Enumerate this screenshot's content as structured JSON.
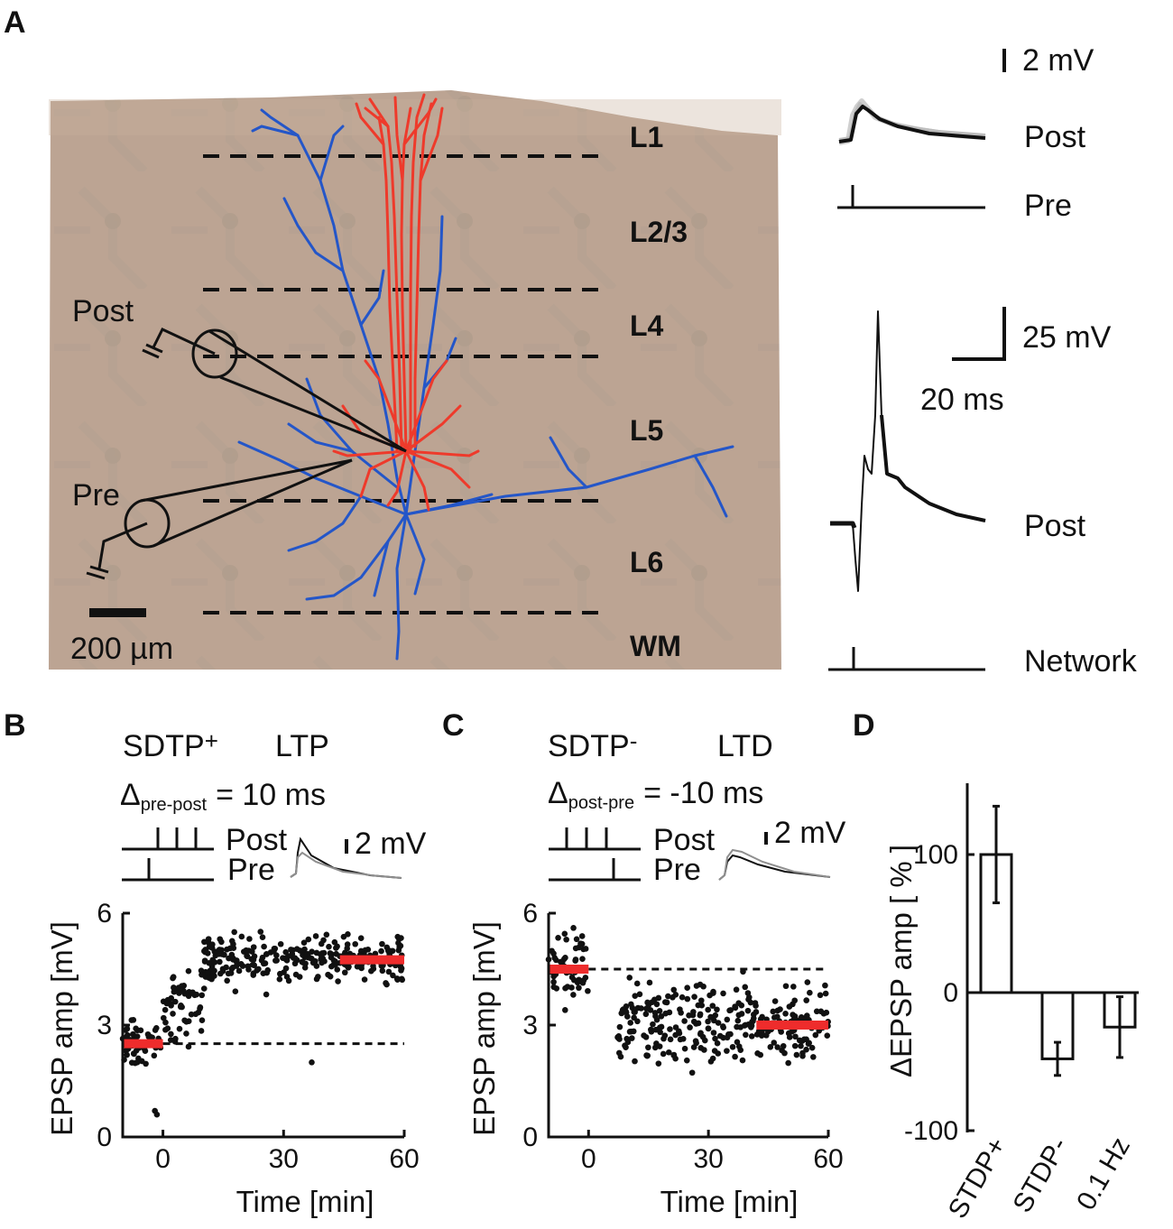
{
  "panels": {
    "a": "A",
    "b": "B",
    "c": "C",
    "d": "D"
  },
  "panel_a": {
    "layers": [
      "L1",
      "L2/3",
      "L4",
      "L5",
      "L6",
      "WM"
    ],
    "electrodes": {
      "post": "Post",
      "pre": "Pre"
    },
    "scale_bar": "200 µm",
    "traces": {
      "top_scale": "2 mV",
      "top_post": "Post",
      "top_pre": "Pre",
      "bottom_scale_v": "25 mV",
      "bottom_scale_t": "20 ms",
      "bottom_post": "Post",
      "bottom_network": "Network"
    },
    "colors": {
      "pyramidal": "#ee3a2b",
      "interneuron": "#2456c8",
      "slice": "#bca493"
    }
  },
  "panel_b": {
    "protocol": "SDTP",
    "protocol_sup": "+",
    "effect": "LTP",
    "delta_symbol": "Δ",
    "delta_sub": "pre-post",
    "delta_value": "= 10 ms",
    "post_label": "Post",
    "pre_label": "Pre",
    "scale": "2 mV",
    "ylabel": "EPSP amp [mV]",
    "xlabel": "Time [min]"
  },
  "panel_c": {
    "protocol": "SDTP",
    "protocol_sup": "-",
    "effect": "LTD",
    "delta_symbol": "Δ",
    "delta_sub": "post-pre",
    "delta_value": "= -10 ms",
    "post_label": "Post",
    "pre_label": "Pre",
    "scale": "2 mV",
    "ylabel": "EPSP amp [mV]",
    "xlabel": "Time [min]"
  },
  "chart_data": [
    {
      "type": "scatter",
      "panel": "B",
      "title": "SDTP+ LTP",
      "xlabel": "Time [min]",
      "ylabel": "EPSP amp [mV]",
      "xlim": [
        -10,
        60
      ],
      "ylim": [
        0,
        6
      ],
      "xticks": [
        "0",
        "30",
        "60"
      ],
      "yticks": [
        "0",
        "3",
        "6"
      ],
      "baseline_segment": {
        "x": [
          -10,
          0
        ],
        "y": 2.5
      },
      "post_segment": {
        "x": [
          44,
          60
        ],
        "y": 4.75
      },
      "reference_dashed": 2.5,
      "cloud_bounds_approx": [
        {
          "x": [
            -10,
            0
          ],
          "y_mean": 2.5,
          "y_spread": 0.55
        },
        {
          "x": [
            0,
            10
          ],
          "y_mean": 3.6,
          "y_spread": 0.8
        },
        {
          "x": [
            10,
            44
          ],
          "y_mean": 4.75,
          "y_spread": 0.6
        },
        {
          "x": [
            44,
            60
          ],
          "y_mean": 4.75,
          "y_spread": 0.6
        }
      ],
      "outliers": [
        {
          "x": -2,
          "y": 0.7
        },
        {
          "x": -1.5,
          "y": 0.6
        },
        {
          "x": 37,
          "y": 2.0
        }
      ]
    },
    {
      "type": "scatter",
      "panel": "C",
      "title": "SDTP- LTD",
      "xlabel": "Time [min]",
      "ylabel": "EPSP amp [mV]",
      "xlim": [
        -10,
        60
      ],
      "ylim": [
        0,
        6
      ],
      "xticks": [
        "0",
        "30",
        "60"
      ],
      "yticks": [
        "0",
        "3",
        "6"
      ],
      "baseline_segment": {
        "x": [
          -10,
          0
        ],
        "y": 4.5
      },
      "post_segment": {
        "x": [
          42,
          60
        ],
        "y": 3.0
      },
      "reference_dashed": 4.5,
      "cloud_bounds_approx": [
        {
          "x": [
            -10,
            0
          ],
          "y_mean": 4.5,
          "y_spread": 1.0
        },
        {
          "x": [
            7,
            60
          ],
          "y_mean": 3.0,
          "y_spread": 1.0
        }
      ]
    },
    {
      "type": "bar",
      "panel": "D",
      "ylabel": "ΔEPSP amp [ % ]",
      "ylim": [
        -100,
        150
      ],
      "yticks": [
        "100",
        "0",
        "-100"
      ],
      "categories": [
        "STDP+",
        "STDP-",
        "0.1 Hz"
      ],
      "values": [
        100,
        -48,
        -25
      ],
      "errors": [
        35,
        12,
        22
      ]
    }
  ]
}
